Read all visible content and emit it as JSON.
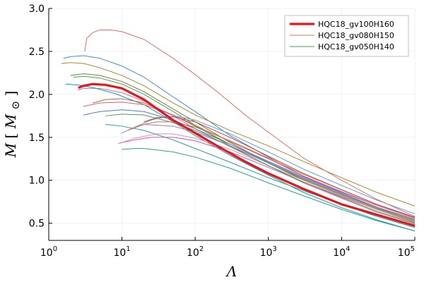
{
  "chart_data": {
    "type": "line",
    "title": "",
    "xlabel": "Λ",
    "ylabel_main": "M",
    "ylabel_sub": "⊙",
    "xscale": "log",
    "xlim": [
      1,
      100000
    ],
    "ylim": [
      0.3,
      3.0
    ],
    "grid": true,
    "legend_position": "top-right",
    "x_ticks": [
      {
        "value": 1,
        "base": "10",
        "exp": "0"
      },
      {
        "value": 10,
        "base": "10",
        "exp": "1"
      },
      {
        "value": 100,
        "base": "10",
        "exp": "2"
      },
      {
        "value": 1000,
        "base": "10",
        "exp": "3"
      },
      {
        "value": 10000,
        "base": "10",
        "exp": "4"
      },
      {
        "value": 100000,
        "base": "10",
        "exp": "5"
      }
    ],
    "y_ticks": [
      {
        "value": 0.5,
        "label": "0.5"
      },
      {
        "value": 1.0,
        "label": "1.0"
      },
      {
        "value": 1.5,
        "label": "1.5"
      },
      {
        "value": 2.0,
        "label": "2.0"
      },
      {
        "value": 2.5,
        "label": "2.5"
      },
      {
        "value": 3.0,
        "label": "3.0"
      }
    ],
    "series": [
      {
        "name": "HQC18_gv100H160",
        "color": "#e8161c",
        "width": 3.2,
        "points": [
          [
            2.6,
            2.08
          ],
          [
            3,
            2.1
          ],
          [
            4,
            2.12
          ],
          [
            6,
            2.11
          ],
          [
            10,
            2.07
          ],
          [
            20,
            1.94
          ],
          [
            50,
            1.7
          ],
          [
            100,
            1.55
          ],
          [
            200,
            1.4
          ],
          [
            500,
            1.21
          ],
          [
            1000,
            1.08
          ],
          [
            3000,
            0.9
          ],
          [
            10000,
            0.72
          ],
          [
            30000,
            0.6
          ],
          [
            100000,
            0.47
          ]
        ]
      },
      {
        "name": "HQC18_gv080H150",
        "color": "#e26f6a",
        "width": 1.0,
        "points": [
          [
            3.1,
            2.5
          ],
          [
            3.3,
            2.65
          ],
          [
            4,
            2.72
          ],
          [
            5,
            2.75
          ],
          [
            7,
            2.75
          ],
          [
            10,
            2.73
          ],
          [
            20,
            2.64
          ],
          [
            50,
            2.42
          ],
          [
            100,
            2.23
          ],
          [
            200,
            2.03
          ],
          [
            500,
            1.75
          ],
          [
            1000,
            1.56
          ],
          [
            3000,
            1.26
          ],
          [
            10000,
            1.0
          ],
          [
            30000,
            0.78
          ],
          [
            100000,
            0.58
          ]
        ]
      },
      {
        "name": "HQC18_gv050H140",
        "color": "#3fa44b",
        "width": 1.0,
        "points": [
          [
            2.2,
            2.2
          ],
          [
            3,
            2.21
          ],
          [
            5,
            2.19
          ],
          [
            10,
            2.12
          ],
          [
            20,
            2.0
          ],
          [
            50,
            1.8
          ],
          [
            100,
            1.64
          ],
          [
            300,
            1.4
          ],
          [
            1000,
            1.17
          ],
          [
            3000,
            0.98
          ],
          [
            10000,
            0.8
          ],
          [
            30000,
            0.64
          ],
          [
            100000,
            0.5
          ]
        ]
      },
      {
        "name": "",
        "color": "#3e8fd8",
        "width": 1.0,
        "points": [
          [
            1.6,
            2.42
          ],
          [
            2,
            2.44
          ],
          [
            3,
            2.45
          ],
          [
            5,
            2.42
          ],
          [
            10,
            2.33
          ],
          [
            20,
            2.2
          ],
          [
            50,
            1.97
          ],
          [
            100,
            1.8
          ],
          [
            300,
            1.52
          ],
          [
            1000,
            1.27
          ],
          [
            3000,
            1.05
          ],
          [
            10000,
            0.85
          ],
          [
            30000,
            0.68
          ],
          [
            100000,
            0.52
          ]
        ]
      },
      {
        "name": "",
        "color": "#a8892a",
        "width": 1.0,
        "points": [
          [
            1.5,
            2.36
          ],
          [
            2,
            2.37
          ],
          [
            3,
            2.36
          ],
          [
            5,
            2.31
          ],
          [
            10,
            2.22
          ],
          [
            20,
            2.1
          ],
          [
            50,
            1.9
          ],
          [
            100,
            1.76
          ],
          [
            300,
            1.58
          ],
          [
            1000,
            1.4
          ],
          [
            3000,
            1.22
          ],
          [
            10000,
            1.03
          ],
          [
            30000,
            0.86
          ],
          [
            100000,
            0.7
          ]
        ]
      },
      {
        "name": "",
        "color": "#6f7f2a",
        "width": 1.0,
        "points": [
          [
            2,
            2.22
          ],
          [
            3,
            2.24
          ],
          [
            5,
            2.22
          ],
          [
            10,
            2.15
          ],
          [
            20,
            2.03
          ],
          [
            50,
            1.83
          ],
          [
            100,
            1.68
          ],
          [
            300,
            1.44
          ],
          [
            1000,
            1.2
          ],
          [
            3000,
            1.0
          ],
          [
            10000,
            0.82
          ],
          [
            30000,
            0.66
          ],
          [
            100000,
            0.51
          ]
        ]
      },
      {
        "name": "",
        "color": "#d66aa6",
        "width": 1.0,
        "points": [
          [
            2.5,
            2.05
          ],
          [
            3,
            2.07
          ],
          [
            5,
            2.07
          ],
          [
            10,
            2.02
          ],
          [
            20,
            1.92
          ],
          [
            50,
            1.75
          ],
          [
            100,
            1.6
          ],
          [
            300,
            1.39
          ],
          [
            1000,
            1.17
          ],
          [
            3000,
            0.97
          ],
          [
            10000,
            0.79
          ],
          [
            30000,
            0.63
          ],
          [
            100000,
            0.49
          ]
        ]
      },
      {
        "name": "",
        "color": "#00a3a8",
        "width": 1.0,
        "points": [
          [
            1.7,
            2.12
          ],
          [
            2.5,
            2.11
          ],
          [
            4,
            2.08
          ],
          [
            8,
            2.01
          ],
          [
            20,
            1.88
          ],
          [
            50,
            1.68
          ],
          [
            100,
            1.52
          ],
          [
            300,
            1.29
          ],
          [
            1000,
            1.06
          ],
          [
            3000,
            0.86
          ],
          [
            10000,
            0.68
          ],
          [
            30000,
            0.54
          ],
          [
            100000,
            0.41
          ]
        ]
      },
      {
        "name": "",
        "color": "#b06b2a",
        "width": 1.0,
        "points": [
          [
            4,
            1.9
          ],
          [
            6,
            1.94
          ],
          [
            10,
            1.95
          ],
          [
            20,
            1.9
          ],
          [
            50,
            1.76
          ],
          [
            100,
            1.63
          ],
          [
            300,
            1.42
          ],
          [
            1000,
            1.21
          ],
          [
            3000,
            1.02
          ],
          [
            10000,
            0.84
          ],
          [
            30000,
            0.68
          ],
          [
            100000,
            0.54
          ]
        ]
      },
      {
        "name": "",
        "color": "#4b7be0",
        "width": 1.0,
        "points": [
          [
            3,
            1.76
          ],
          [
            5,
            1.8
          ],
          [
            10,
            1.82
          ],
          [
            20,
            1.8
          ],
          [
            50,
            1.7
          ],
          [
            100,
            1.6
          ],
          [
            300,
            1.42
          ],
          [
            1000,
            1.22
          ],
          [
            3000,
            1.04
          ],
          [
            10000,
            0.86
          ],
          [
            30000,
            0.71
          ],
          [
            100000,
            0.57
          ]
        ]
      },
      {
        "name": "",
        "color": "#e05a8c",
        "width": 1.0,
        "points": [
          [
            3,
            1.86
          ],
          [
            5,
            1.9
          ],
          [
            10,
            1.91
          ],
          [
            20,
            1.88
          ],
          [
            50,
            1.76
          ],
          [
            100,
            1.64
          ],
          [
            300,
            1.45
          ],
          [
            1000,
            1.25
          ],
          [
            3000,
            1.05
          ],
          [
            10000,
            0.87
          ],
          [
            30000,
            0.71
          ],
          [
            100000,
            0.56
          ]
        ]
      },
      {
        "name": "",
        "color": "#26a0a0",
        "width": 1.0,
        "points": [
          [
            6,
            1.65
          ],
          [
            10,
            1.63
          ],
          [
            20,
            1.58
          ],
          [
            50,
            1.47
          ],
          [
            100,
            1.37
          ],
          [
            300,
            1.21
          ],
          [
            1000,
            1.03
          ],
          [
            3000,
            0.88
          ],
          [
            10000,
            0.72
          ],
          [
            30000,
            0.58
          ],
          [
            100000,
            0.45
          ]
        ]
      },
      {
        "name": "",
        "color": "#2f9e8e",
        "width": 1.0,
        "points": [
          [
            10,
            1.36
          ],
          [
            15,
            1.37
          ],
          [
            20,
            1.37
          ],
          [
            50,
            1.33
          ],
          [
            100,
            1.27
          ],
          [
            300,
            1.14
          ],
          [
            1000,
            0.97
          ],
          [
            3000,
            0.82
          ],
          [
            10000,
            0.66
          ],
          [
            30000,
            0.53
          ],
          [
            100000,
            0.41
          ]
        ]
      },
      {
        "name": "",
        "color": "#4aa05a",
        "width": 1.0,
        "points": [
          [
            6,
            1.75
          ],
          [
            10,
            1.77
          ],
          [
            20,
            1.76
          ],
          [
            50,
            1.67
          ],
          [
            100,
            1.58
          ],
          [
            300,
            1.4
          ],
          [
            1000,
            1.2
          ],
          [
            3000,
            1.01
          ],
          [
            10000,
            0.83
          ],
          [
            30000,
            0.67
          ],
          [
            100000,
            0.53
          ]
        ]
      },
      {
        "name": "",
        "color": "#8b7dd6",
        "width": 1.0,
        "points": [
          [
            10,
            1.55
          ],
          [
            15,
            1.62
          ],
          [
            20,
            1.65
          ],
          [
            50,
            1.63
          ],
          [
            100,
            1.56
          ],
          [
            300,
            1.4
          ],
          [
            1000,
            1.21
          ],
          [
            3000,
            1.03
          ],
          [
            10000,
            0.85
          ],
          [
            30000,
            0.69
          ],
          [
            100000,
            0.55
          ]
        ]
      },
      {
        "name": "",
        "color": "#c95ab8",
        "width": 1.0,
        "points": [
          [
            9,
            1.43
          ],
          [
            15,
            1.47
          ],
          [
            25,
            1.5
          ],
          [
            50,
            1.5
          ],
          [
            100,
            1.46
          ],
          [
            300,
            1.33
          ],
          [
            1000,
            1.15
          ],
          [
            3000,
            0.98
          ],
          [
            10000,
            0.81
          ],
          [
            30000,
            0.66
          ],
          [
            100000,
            0.52
          ]
        ]
      },
      {
        "name": "",
        "color": "#d87a2a",
        "width": 1.0,
        "points": [
          [
            12,
            1.58
          ],
          [
            20,
            1.65
          ],
          [
            30,
            1.68
          ],
          [
            50,
            1.68
          ],
          [
            100,
            1.62
          ],
          [
            300,
            1.46
          ],
          [
            1000,
            1.26
          ],
          [
            3000,
            1.07
          ],
          [
            10000,
            0.89
          ],
          [
            30000,
            0.72
          ],
          [
            100000,
            0.57
          ]
        ]
      },
      {
        "name": "",
        "color": "#5aa0e0",
        "width": 1.0,
        "points": [
          [
            15,
            1.62
          ],
          [
            25,
            1.7
          ],
          [
            40,
            1.74
          ],
          [
            60,
            1.74
          ],
          [
            100,
            1.7
          ],
          [
            300,
            1.54
          ],
          [
            1000,
            1.33
          ],
          [
            3000,
            1.13
          ],
          [
            10000,
            0.94
          ],
          [
            30000,
            0.77
          ],
          [
            100000,
            0.61
          ]
        ]
      },
      {
        "name": "",
        "color": "#d13a3a",
        "width": 1.0,
        "points": [
          [
            20,
            1.68
          ],
          [
            30,
            1.73
          ],
          [
            50,
            1.74
          ],
          [
            100,
            1.68
          ],
          [
            300,
            1.5
          ],
          [
            1000,
            1.28
          ],
          [
            3000,
            1.08
          ],
          [
            10000,
            0.89
          ],
          [
            30000,
            0.72
          ],
          [
            100000,
            0.57
          ]
        ]
      },
      {
        "name": "",
        "color": "#e58fb0",
        "width": 1.0,
        "points": [
          [
            10,
            1.44
          ],
          [
            15,
            1.49
          ],
          [
            30,
            1.54
          ],
          [
            50,
            1.54
          ],
          [
            100,
            1.49
          ],
          [
            300,
            1.36
          ],
          [
            1000,
            1.17
          ],
          [
            3000,
            1.0
          ],
          [
            10000,
            0.82
          ],
          [
            30000,
            0.66
          ],
          [
            100000,
            0.52
          ]
        ]
      }
    ]
  }
}
